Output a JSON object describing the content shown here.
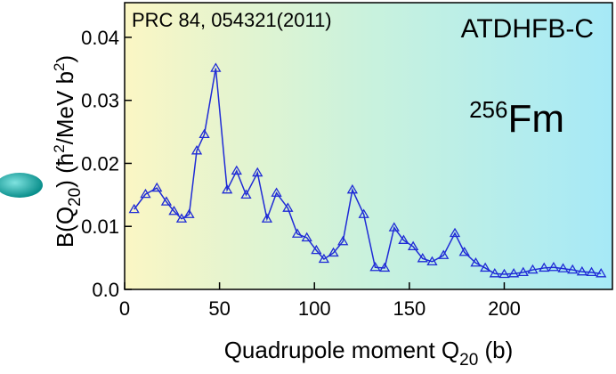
{
  "chart_data": {
    "type": "line",
    "annotations": {
      "reference": "PRC 84, 054321(2011)",
      "method": "ATDHFB-C",
      "nucleus_mass": "256",
      "nucleus_symbol": "Fm"
    },
    "xlabel": [
      {
        "text": "Quadrupole moment Q"
      },
      {
        "text": "20",
        "sub": true
      },
      {
        "text": " (b)"
      }
    ],
    "ylabel": [
      {
        "text": "B(Q"
      },
      {
        "text": "20",
        "sub": true
      },
      {
        "text": ")  (ħ"
      },
      {
        "text": "2",
        "sup": true
      },
      {
        "text": "/MeV b"
      },
      {
        "text": "2",
        "sup": true
      },
      {
        "text": ")"
      }
    ],
    "x": [
      5,
      11,
      17,
      22,
      26,
      30,
      34,
      38,
      42,
      48,
      54,
      59,
      64,
      70,
      75,
      80,
      86,
      91,
      96,
      101,
      105,
      110,
      115,
      120,
      126,
      132,
      137,
      142,
      147,
      152,
      157,
      162,
      168,
      174,
      179,
      185,
      190,
      195,
      200,
      205,
      210,
      215,
      221,
      226,
      231,
      236,
      241,
      246,
      251
    ],
    "series": [
      {
        "color": "#1f2bd6",
        "values": [
          0.0127,
          0.0151,
          0.0161,
          0.0139,
          0.0124,
          0.0112,
          0.0119,
          0.022,
          0.0246,
          0.0351,
          0.0158,
          0.0188,
          0.015,
          0.0185,
          0.0112,
          0.0153,
          0.0129,
          0.0088,
          0.0082,
          0.0062,
          0.0048,
          0.0058,
          0.0076,
          0.0158,
          0.0119,
          0.0035,
          0.0034,
          0.0098,
          0.0078,
          0.0068,
          0.0049,
          0.0044,
          0.0054,
          0.0089,
          0.0059,
          0.0042,
          0.0034,
          0.0025,
          0.0024,
          0.0025,
          0.0027,
          0.0031,
          0.0034,
          0.0035,
          0.0033,
          0.0031,
          0.0028,
          0.0027,
          0.0025
        ]
      }
    ],
    "xlim": [
      0,
      257
    ],
    "ylim": [
      0,
      0.0455
    ],
    "xticks": [
      0,
      50,
      100,
      150,
      200
    ],
    "yticks": [
      {
        "value": 0,
        "label": "0.0"
      },
      0.01,
      0.02,
      0.03,
      0.04
    ],
    "marker": "open-triangle"
  }
}
